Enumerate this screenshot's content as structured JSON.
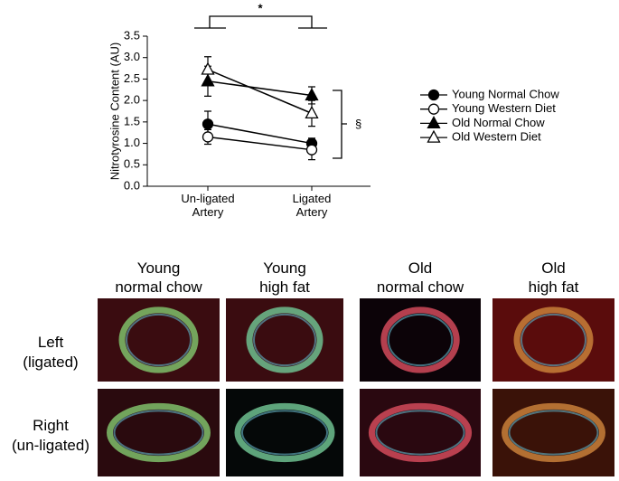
{
  "chart_data": {
    "type": "line",
    "y_label": "Nitrotyrosine Content (AU)",
    "categories": [
      "Un-ligated Artery",
      "Ligated Artery"
    ],
    "ylim": [
      0,
      3.5
    ],
    "yticks": [
      {
        "value": 0,
        "label": "0.0"
      },
      0.5,
      {
        "value": 1,
        "label": "1.0"
      },
      1.5,
      {
        "value": 2,
        "label": "2.0"
      },
      2.5,
      {
        "value": 3,
        "label": "3.0"
      },
      3.5
    ],
    "series": [
      {
        "name": "Young Normal Chow",
        "color": "#000000",
        "marker": "circle",
        "filled": true,
        "values": [
          1.45,
          1.0
        ],
        "errors": [
          0.3,
          0.12
        ]
      },
      {
        "name": "Young Western Diet",
        "color": "#000000",
        "marker": "circle",
        "filled": false,
        "values": [
          1.15,
          0.85
        ],
        "errors": [
          0.17,
          0.23
        ]
      },
      {
        "name": "Old Normal Chow",
        "color": "#000000",
        "marker": "triangle",
        "filled": true,
        "values": [
          2.45,
          2.12
        ],
        "errors": [
          0.35,
          0.2
        ]
      },
      {
        "name": "Old Western Diet",
        "color": "#000000",
        "marker": "triangle",
        "filled": false,
        "values": [
          2.72,
          1.7
        ],
        "errors": [
          0.3,
          0.3
        ]
      }
    ],
    "annotations": [
      "*",
      "§"
    ]
  },
  "panels": {
    "columns": [
      [
        "Young",
        "normal chow"
      ],
      [
        "Young",
        "high fat"
      ],
      [
        "Old",
        "normal chow"
      ],
      [
        "Old",
        "high fat"
      ]
    ],
    "rows": [
      [
        "Left",
        "(ligated)"
      ],
      [
        "Right",
        "(un-ligated)"
      ]
    ]
  }
}
